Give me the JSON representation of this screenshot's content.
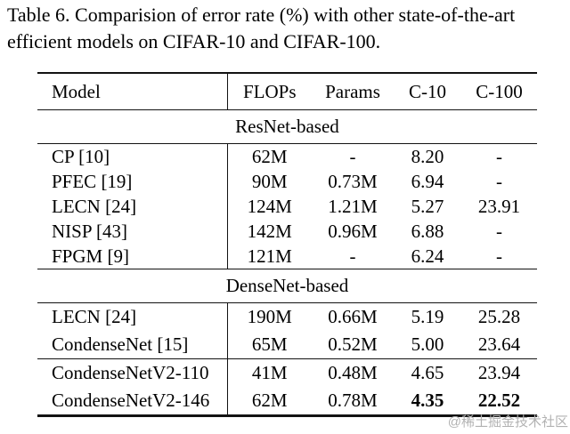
{
  "caption": {
    "line1": "Table 6. Comparision of error rate (%) with other state-of-the-art",
    "line2": "efficient models on CIFAR-10 and CIFAR-100."
  },
  "table": {
    "headers": {
      "model": "Model",
      "flops": "FLOPs",
      "params": "Params",
      "c10": "C-10",
      "c100": "C-100"
    },
    "sections": [
      {
        "title": "ResNet-based",
        "rows": [
          {
            "model": "CP [10]",
            "flops": "62M",
            "params": "-",
            "c10": "8.20",
            "c100": "-"
          },
          {
            "model": "PFEC [19]",
            "flops": "90M",
            "params": "0.73M",
            "c10": "6.94",
            "c100": "-"
          },
          {
            "model": "LECN [24]",
            "flops": "124M",
            "params": "1.21M",
            "c10": "5.27",
            "c100": "23.91"
          },
          {
            "model": "NISP [43]",
            "flops": "142M",
            "params": "0.96M",
            "c10": "6.88",
            "c100": "-"
          },
          {
            "model": "FPGM [9]",
            "flops": "121M",
            "params": "-",
            "c10": "6.24",
            "c100": "-"
          }
        ]
      },
      {
        "title": "DenseNet-based",
        "rows": [
          {
            "model": "LECN [24]",
            "flops": "190M",
            "params": "0.66M",
            "c10": "5.19",
            "c100": "25.28"
          },
          {
            "model": "CondenseNet [15]",
            "flops": "65M",
            "params": "0.52M",
            "c10": "5.00",
            "c100": "23.64"
          }
        ]
      },
      {
        "rows": [
          {
            "model": "CondenseNetV2-110",
            "flops": "41M",
            "params": "0.48M",
            "c10": "4.65",
            "c100": "23.94"
          },
          {
            "model": "CondenseNetV2-146",
            "flops": "62M",
            "params": "0.78M",
            "c10": "4.35",
            "c100": "22.52",
            "bold_cells": "c10,c100"
          }
        ]
      }
    ]
  },
  "watermark": "@稀土掘金技术社区"
}
